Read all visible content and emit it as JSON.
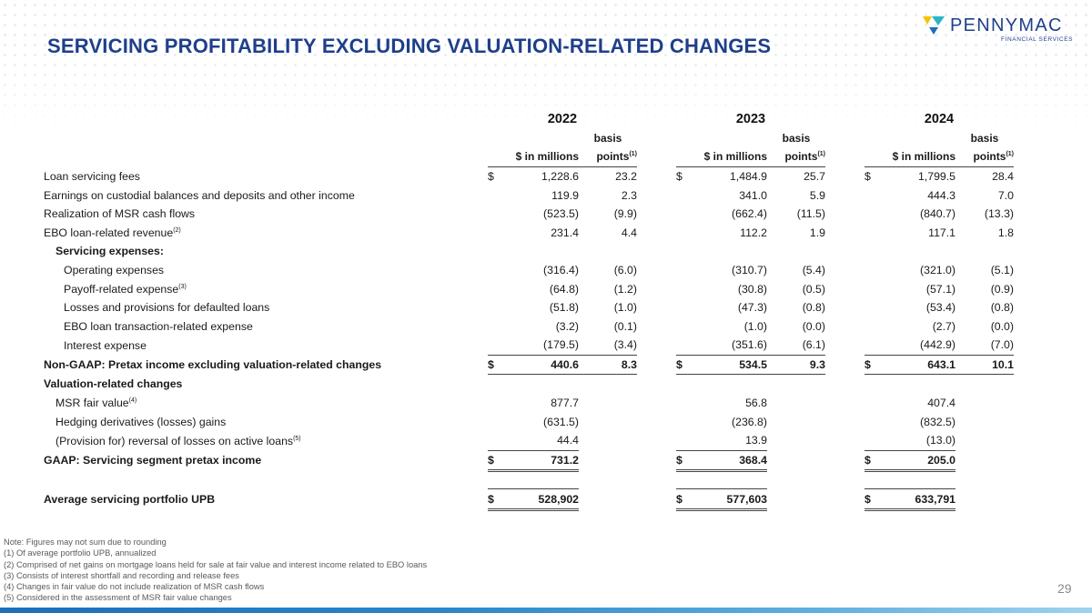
{
  "title": "SERVICING PROFITABILITY EXCLUDING VALUATION-RELATED CHANGES",
  "logo": {
    "name": "PENNYMAC",
    "sub": "FINANCIAL SERVICES"
  },
  "colors": {
    "brand_blue": "#1e3f8a",
    "logo_yellow": "#f5c400",
    "logo_teal": "#2bb6c6",
    "logo_blue": "#1d6fb8"
  },
  "years": [
    "2022",
    "2023",
    "2024"
  ],
  "col_headers": {
    "millions": "$ in millions",
    "basis_top": "basis",
    "basis_bottom": "points",
    "basis_note": "(1)"
  },
  "rows": [
    {
      "label": "Loan servicing fees",
      "note": "",
      "cur": "$",
      "v": [
        "1,228.6",
        "23.2",
        "1,484.9",
        "25.7",
        "1,799.5",
        "28.4"
      ]
    },
    {
      "label": "Earnings on custodial balances and deposits and other income",
      "note": "",
      "cur": "",
      "v": [
        "119.9",
        "2.3",
        "341.0",
        "5.9",
        "444.3",
        "7.0"
      ]
    },
    {
      "label": "Realization of MSR cash flows",
      "note": "",
      "cur": "",
      "v": [
        "(523.5)",
        "(9.9)",
        "(662.4)",
        "(11.5)",
        "(840.7)",
        "(13.3)"
      ]
    },
    {
      "label": "EBO loan-related revenue",
      "note": "(2)",
      "cur": "",
      "v": [
        "231.4",
        "4.4",
        "112.2",
        "1.9",
        "117.1",
        "1.8"
      ]
    },
    {
      "label": "Servicing expenses:",
      "note": "",
      "cur": "",
      "v": [
        "",
        "",
        "",
        "",
        "",
        ""
      ]
    },
    {
      "label": "Operating expenses",
      "note": "",
      "cur": "",
      "v": [
        "(316.4)",
        "(6.0)",
        "(310.7)",
        "(5.4)",
        "(321.0)",
        "(5.1)"
      ]
    },
    {
      "label": "Payoff-related expense",
      "note": "(3)",
      "cur": "",
      "v": [
        "(64.8)",
        "(1.2)",
        "(30.8)",
        "(0.5)",
        "(57.1)",
        "(0.9)"
      ]
    },
    {
      "label": "Losses and provisions for defaulted loans",
      "note": "",
      "cur": "",
      "v": [
        "(51.8)",
        "(1.0)",
        "(47.3)",
        "(0.8)",
        "(53.4)",
        "(0.8)"
      ]
    },
    {
      "label": "EBO loan transaction-related expense",
      "note": "",
      "cur": "",
      "v": [
        "(3.2)",
        "(0.1)",
        "(1.0)",
        "(0.0)",
        "(2.7)",
        "(0.0)"
      ]
    },
    {
      "label": "Interest expense",
      "note": "",
      "cur": "",
      "v": [
        "(179.5)",
        "(3.4)",
        "(351.6)",
        "(6.1)",
        "(442.9)",
        "(7.0)"
      ]
    },
    {
      "label": "Non-GAAP: Pretax income excluding valuation-related changes",
      "note": "",
      "cur": "$",
      "v": [
        "440.6",
        "8.3",
        "534.5",
        "9.3",
        "643.1",
        "10.1"
      ]
    },
    {
      "label": "Valuation-related changes",
      "note": "",
      "cur": "",
      "v": [
        "",
        "",
        "",
        "",
        "",
        ""
      ]
    },
    {
      "label": "MSR fair value",
      "note": "(4)",
      "cur": "",
      "v": [
        "877.7",
        "",
        "56.8",
        "",
        "407.4",
        ""
      ]
    },
    {
      "label": "Hedging derivatives (losses) gains",
      "note": "",
      "cur": "",
      "v": [
        "(631.5)",
        "",
        "(236.8)",
        "",
        "(832.5)",
        ""
      ]
    },
    {
      "label": "(Provision for) reversal of losses on active loans",
      "note": "(5)",
      "cur": "",
      "v": [
        "44.4",
        "",
        "13.9",
        "",
        "(13.0)",
        ""
      ]
    },
    {
      "label": "GAAP: Servicing segment pretax income",
      "note": "",
      "cur": "$",
      "v": [
        "731.2",
        "",
        "368.4",
        "",
        "205.0",
        ""
      ]
    },
    {
      "label": "Average servicing portfolio UPB",
      "note": "",
      "cur": "$",
      "v": [
        "528,902",
        "",
        "577,603",
        "",
        "633,791",
        ""
      ]
    }
  ],
  "notes": [
    "Note: Figures may not sum due to rounding",
    "(1) Of average portfolio UPB, annualized",
    "(2) Comprised of net gains on mortgage loans held for sale at fair value and interest income related to EBO loans",
    "(3) Consists of interest shortfall and recording and release fees",
    "(4) Changes in fair value do not include realization of MSR cash flows",
    "(5) Considered in the assessment of MSR fair value changes"
  ],
  "page_number": "29"
}
